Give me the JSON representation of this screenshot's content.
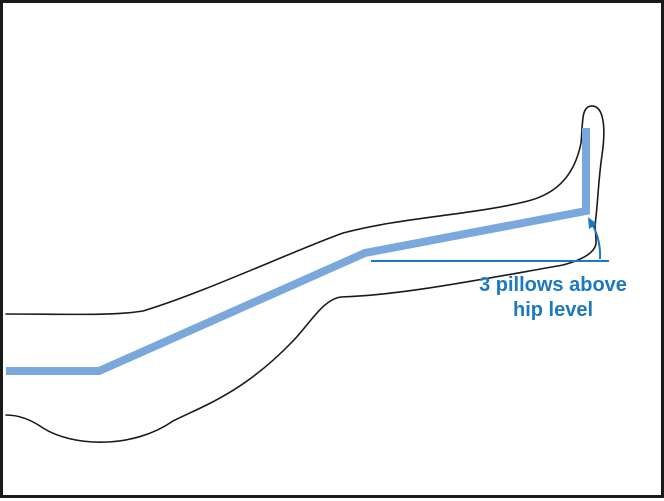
{
  "annotation": {
    "line1": "3 pillows above",
    "line2": "hip level"
  },
  "colors": {
    "outline": "#1a1a1a",
    "leg_axis": "#7aa7dc",
    "annotation": "#1c78c0"
  }
}
